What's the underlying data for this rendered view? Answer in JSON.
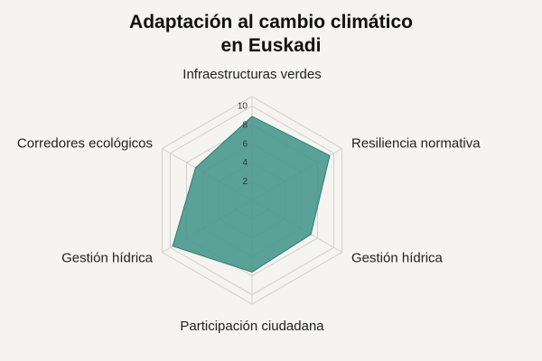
{
  "chart_data": {
    "type": "radar",
    "title_lines": [
      "Adaptación al cambio climático",
      "en Euskadi"
    ],
    "axes": [
      "Infraestructuras verdes",
      "Resiliencia normativa",
      "Gestión hídrica",
      "Participación ciudadana",
      "Gestión hídrica",
      "Corredores ecológicos"
    ],
    "series": [
      {
        "values": [
          8.9,
          9.5,
          7.2,
          7.6,
          9.7,
          6.9
        ]
      }
    ],
    "ticks": [
      2,
      4,
      6,
      8,
      10
    ],
    "rmax": 11,
    "grid": true,
    "colors": {
      "fill": "#4c9a8f",
      "stroke": "#2f7a70",
      "grid": "#cfcfcf",
      "background": "#f5f4f0"
    }
  }
}
